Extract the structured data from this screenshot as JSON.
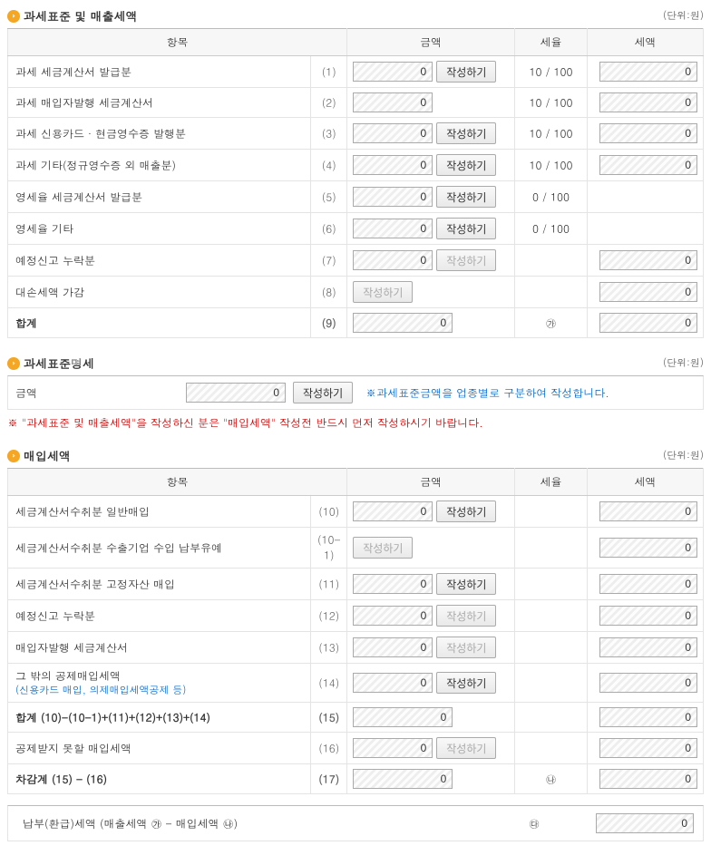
{
  "unit_label": "(단위:원)",
  "headers": {
    "item": "항목",
    "amount": "금액",
    "rate": "세율",
    "tax": "세액"
  },
  "write_btn": "작성하기",
  "section1": {
    "title": "과세표준 및 매출세액",
    "rows": [
      {
        "label": "과세 세금계산서 발급분",
        "no": "(1)",
        "amount": "0",
        "has_btn": true,
        "btn_enabled": true,
        "rate": "10 / 100",
        "tax": "0"
      },
      {
        "label": "과세 매입자발행 세금계산서",
        "no": "(2)",
        "amount": "0",
        "has_btn": false,
        "btn_enabled": false,
        "rate": "10 / 100",
        "tax": "0"
      },
      {
        "label": "과세 신용카드 · 현금영수증 발행분",
        "no": "(3)",
        "amount": "0",
        "has_btn": true,
        "btn_enabled": true,
        "rate": "10 / 100",
        "tax": "0"
      },
      {
        "label": "과세 기타(정규영수증 외 매출분)",
        "no": "(4)",
        "amount": "0",
        "has_btn": true,
        "btn_enabled": true,
        "rate": "10 / 100",
        "tax": "0"
      },
      {
        "label": "영세율 세금계산서 발급분",
        "no": "(5)",
        "amount": "0",
        "has_btn": true,
        "btn_enabled": true,
        "rate": "0 / 100",
        "tax": ""
      },
      {
        "label": "영세율 기타",
        "no": "(6)",
        "amount": "0",
        "has_btn": true,
        "btn_enabled": true,
        "rate": "0 / 100",
        "tax": ""
      },
      {
        "label": "예정신고 누락분",
        "no": "(7)",
        "amount": "0",
        "has_btn": true,
        "btn_enabled": false,
        "rate": "",
        "tax": "0"
      },
      {
        "label": "대손세액 가감",
        "no": "(8)",
        "amount": "",
        "has_btn": true,
        "btn_enabled": false,
        "rate": "",
        "tax": "0"
      },
      {
        "label": "합계",
        "no": "(9)",
        "amount": "0",
        "has_btn": false,
        "btn_enabled": false,
        "rate": "㉮",
        "tax": "0",
        "is_total": true
      }
    ]
  },
  "section2": {
    "title": "과세표준명세",
    "label": "금액",
    "amount": "0",
    "note_blue": "※과세표준금액을 업종별로 구분하여 작성합니다.",
    "note_red": "※ \"과세표준 및 매출세액\"을 작성하신 분은 \"매입세액\" 작성전 반드시 먼저 작성하시기 바랍니다."
  },
  "section3": {
    "title": "매입세액",
    "rows": [
      {
        "label": "세금계산서수취분 일반매입",
        "no": "(10)",
        "amount": "0",
        "has_btn": true,
        "btn_enabled": true,
        "rate": "",
        "tax": "0"
      },
      {
        "label": "세금계산서수취분 수출기업 수입 납부유예",
        "no": "(10-1)",
        "amount": "",
        "has_btn": true,
        "btn_enabled": false,
        "rate": "",
        "tax": "0"
      },
      {
        "label": "세금계산서수취분 고정자산 매입",
        "no": "(11)",
        "amount": "0",
        "has_btn": true,
        "btn_enabled": true,
        "rate": "",
        "tax": "0"
      },
      {
        "label": "예정신고 누락분",
        "no": "(12)",
        "amount": "0",
        "has_btn": true,
        "btn_enabled": false,
        "rate": "",
        "tax": "0"
      },
      {
        "label": "매입자발행 세금계산서",
        "no": "(13)",
        "amount": "0",
        "has_btn": true,
        "btn_enabled": false,
        "rate": "",
        "tax": "0"
      },
      {
        "label": "그 밖의 공제매입세액",
        "sub": "(신용카드 매입, 의제매입세액공제 등)",
        "no": "(14)",
        "amount": "0",
        "has_btn": true,
        "btn_enabled": true,
        "rate": "",
        "tax": "0"
      },
      {
        "label": "합계 (10)-(10-1)+(11)+(12)+(13)+(14)",
        "no": "(15)",
        "amount": "0",
        "has_btn": false,
        "btn_enabled": false,
        "rate": "",
        "tax": "0",
        "is_total": true
      },
      {
        "label": "공제받지 못할 매입세액",
        "no": "(16)",
        "amount": "0",
        "has_btn": true,
        "btn_enabled": false,
        "rate": "",
        "tax": "0"
      },
      {
        "label": "차감계 (15) - (16)",
        "no": "(17)",
        "amount": "0",
        "has_btn": false,
        "btn_enabled": false,
        "rate": "㉯",
        "tax": "0",
        "is_total": true
      }
    ]
  },
  "footer": {
    "label": "납부(환급)세액 (매출세액 ㉮ - 매입세액 ㉯)",
    "mark": "㉰",
    "tax": "0"
  }
}
